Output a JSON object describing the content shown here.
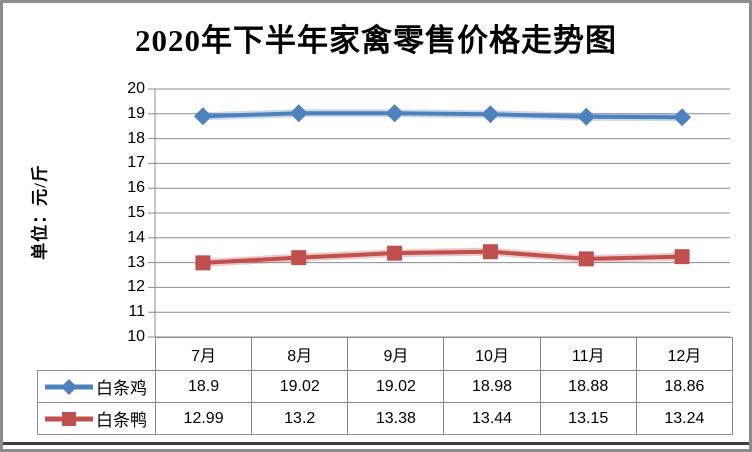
{
  "chart_data": {
    "type": "line",
    "title": "2020年下半年家禽零售价格走势图",
    "ylabel": "单位：元/斤",
    "xlabel": "",
    "categories": [
      "7月",
      "8月",
      "9月",
      "10月",
      "11月",
      "12月"
    ],
    "series": [
      {
        "name": "白条鸡",
        "values": [
          18.9,
          19.02,
          19.02,
          18.98,
          18.88,
          18.86
        ],
        "color": "#4F81BD",
        "marker": "diamond"
      },
      {
        "name": "白条鸭",
        "values": [
          12.99,
          13.2,
          13.38,
          13.44,
          13.15,
          13.24
        ],
        "color": "#C0504D",
        "marker": "square"
      }
    ],
    "ylim": [
      10,
      20
    ],
    "y_tick_step": 1,
    "grid": "horizontal-only",
    "grid_color": "#8C8C8C",
    "legend_position": "attached-data-table-left",
    "data_table_shown": true
  },
  "frame": {
    "border_color": "#8C8C8C",
    "bottom_edge_color": "#3F3F3F",
    "background": "#FFFFFF"
  }
}
